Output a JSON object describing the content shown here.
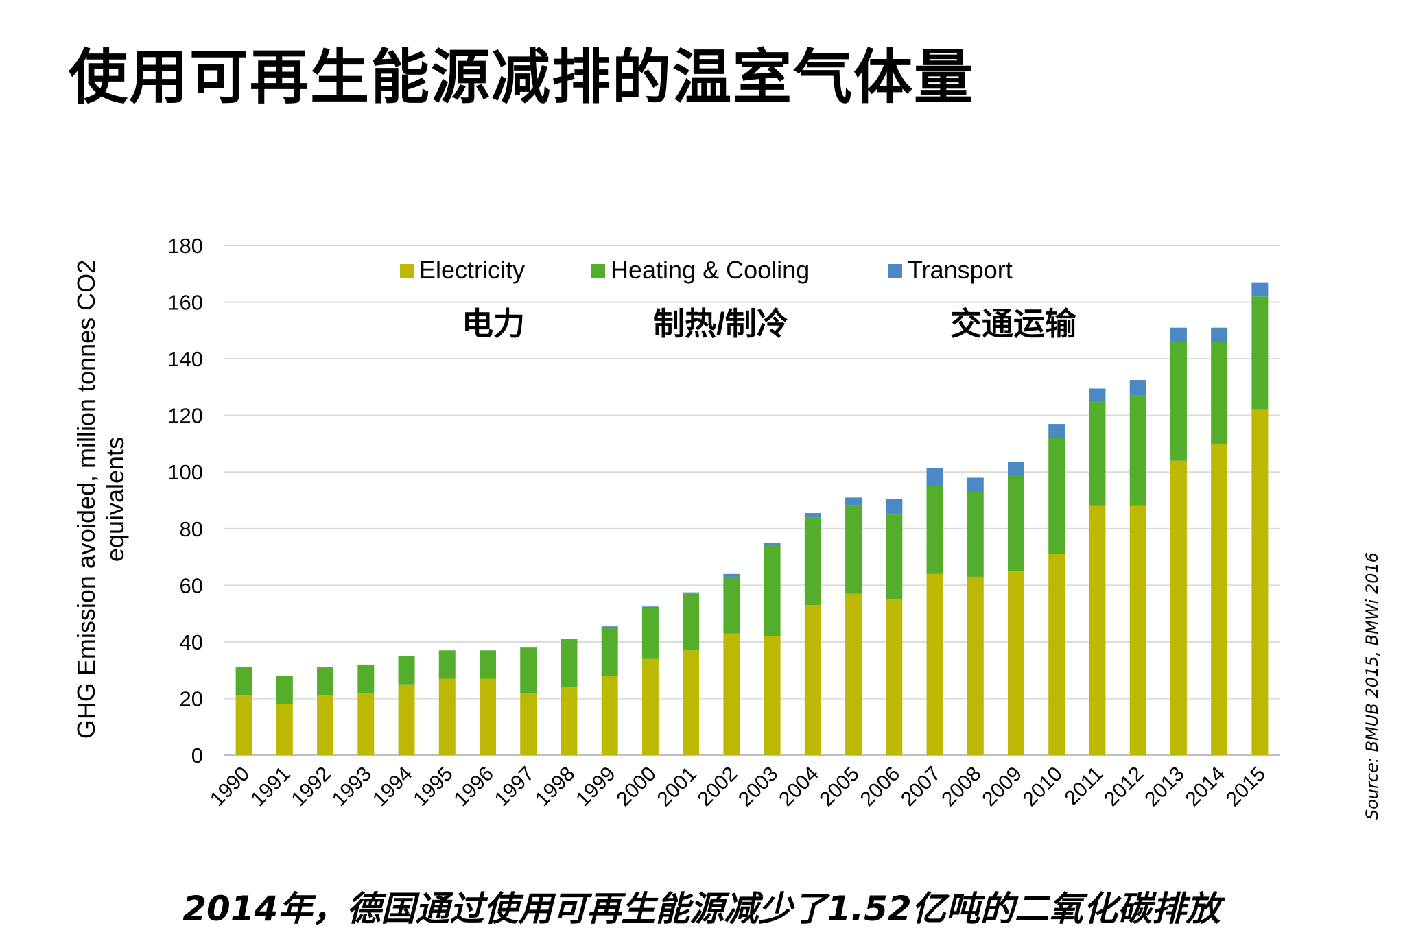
{
  "title": "使用可再生能源减排的温室气体量",
  "footnote": "2014年，德国通过使用可再生能源减少了1.52亿吨的二氧化碳排放",
  "source": "Source: BMUB 2015, BMWi 2016",
  "chart_data": {
    "type": "bar",
    "stacked": true,
    "ylabel": "GHG Emission avoided, million tonnes CO2 equivalents",
    "ylim": [
      0,
      180
    ],
    "yticks": [
      0,
      20,
      40,
      60,
      80,
      100,
      120,
      140,
      160,
      180
    ],
    "grid": true,
    "legend_position": "top",
    "categories": [
      "1990",
      "1991",
      "1992",
      "1993",
      "1994",
      "1995",
      "1996",
      "1997",
      "1998",
      "1999",
      "2000",
      "2001",
      "2002",
      "2003",
      "2004",
      "2005",
      "2006",
      "2007",
      "2008",
      "2009",
      "2010",
      "2011",
      "2012",
      "2013",
      "2014",
      "2015"
    ],
    "series": [
      {
        "name": "Electricity",
        "name_zh": "电力",
        "color": "#BDB804",
        "values": [
          21,
          18,
          21,
          22,
          25,
          27,
          27,
          22,
          24,
          28,
          34,
          37,
          43,
          42,
          53,
          57,
          55,
          64,
          63,
          65,
          71,
          88,
          88,
          104,
          110,
          122
        ]
      },
      {
        "name": "Heating & Cooling",
        "name_zh": "制热/制冷",
        "color": "#55AD2C",
        "values": [
          10,
          10,
          10,
          10,
          10,
          10,
          10,
          16,
          17,
          17,
          18,
          20,
          20,
          32,
          31,
          31,
          30,
          31,
          30,
          34,
          41,
          37,
          39,
          42,
          36,
          40
        ]
      },
      {
        "name": "Transport",
        "name_zh": "交通运输",
        "color": "#4A89C6",
        "values": [
          0,
          0,
          0,
          0,
          0,
          0,
          0,
          0,
          0,
          0.5,
          0.5,
          0.5,
          1,
          1,
          1.5,
          3,
          5.5,
          6.5,
          5,
          4.5,
          5,
          4.5,
          5.5,
          5,
          5,
          5
        ]
      }
    ]
  }
}
